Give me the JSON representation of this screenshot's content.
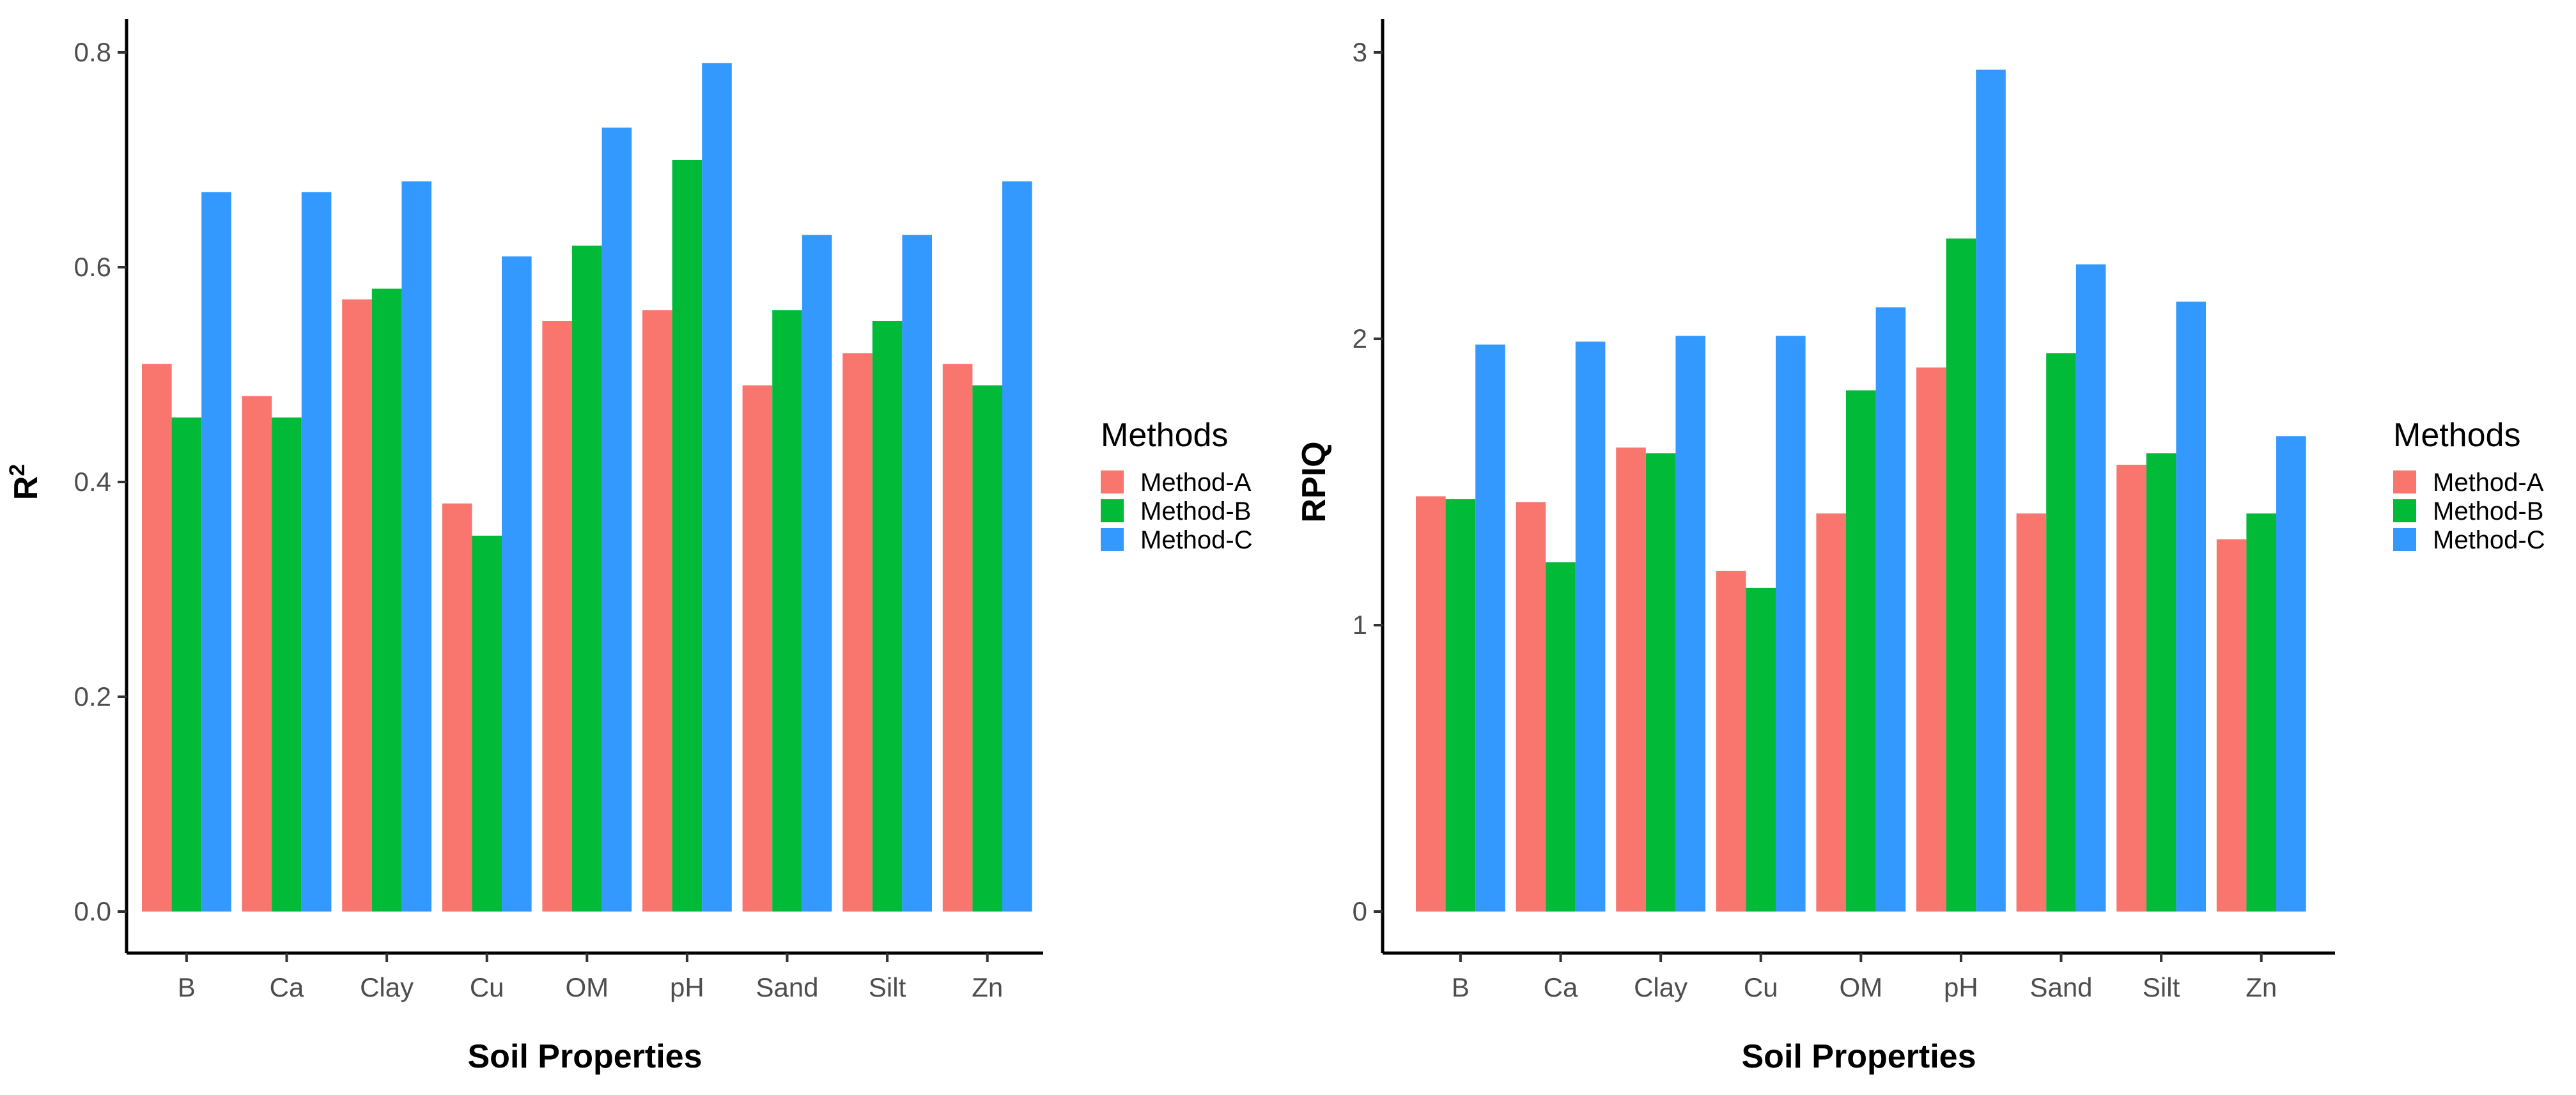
{
  "chart_data": [
    {
      "type": "bar",
      "categories": [
        "B",
        "Ca",
        "Clay",
        "Cu",
        "OM",
        "pH",
        "Sand",
        "Silt",
        "Zn"
      ],
      "series": [
        {
          "name": "Method-A",
          "color": "#F8766D",
          "values": [
            0.51,
            0.48,
            0.57,
            0.38,
            0.55,
            0.56,
            0.49,
            0.52,
            0.51
          ]
        },
        {
          "name": "Method-B",
          "color": "#00BA38",
          "values": [
            0.46,
            0.46,
            0.58,
            0.35,
            0.62,
            0.7,
            0.56,
            0.55,
            0.49
          ]
        },
        {
          "name": "Method-C",
          "color": "#3399FF",
          "values": [
            0.67,
            0.67,
            0.68,
            0.61,
            0.73,
            0.79,
            0.63,
            0.63,
            0.68
          ]
        }
      ],
      "title": "",
      "xlabel": "Soil Properties",
      "ylabel": "R",
      "ylabel_superscript": "2",
      "ylim": [
        0,
        0.8
      ],
      "yticks": [
        "0.0",
        "0.2",
        "0.4",
        "0.6",
        "0.8"
      ],
      "legend_title": "Methods",
      "legend_position": "right"
    },
    {
      "type": "bar",
      "categories": [
        "B",
        "Ca",
        "Clay",
        "Cu",
        "OM",
        "pH",
        "Sand",
        "Silt",
        "Zn"
      ],
      "series": [
        {
          "name": "Method-A",
          "color": "#F8766D",
          "values": [
            1.45,
            1.43,
            1.62,
            1.19,
            1.39,
            1.9,
            1.39,
            1.56,
            1.3
          ]
        },
        {
          "name": "Method-B",
          "color": "#00BA38",
          "values": [
            1.44,
            1.22,
            1.6,
            1.13,
            1.82,
            2.35,
            1.95,
            1.6,
            1.39
          ]
        },
        {
          "name": "Method-C",
          "color": "#3399FF",
          "values": [
            1.98,
            1.99,
            2.01,
            2.01,
            2.11,
            2.94,
            2.26,
            2.13,
            1.66
          ]
        }
      ],
      "title": "",
      "xlabel": "Soil Properties",
      "ylabel": "RPIQ",
      "ylim": [
        0,
        3
      ],
      "yticks": [
        "0",
        "1",
        "2",
        "3"
      ],
      "legend_title": "Methods",
      "legend_position": "right"
    }
  ]
}
